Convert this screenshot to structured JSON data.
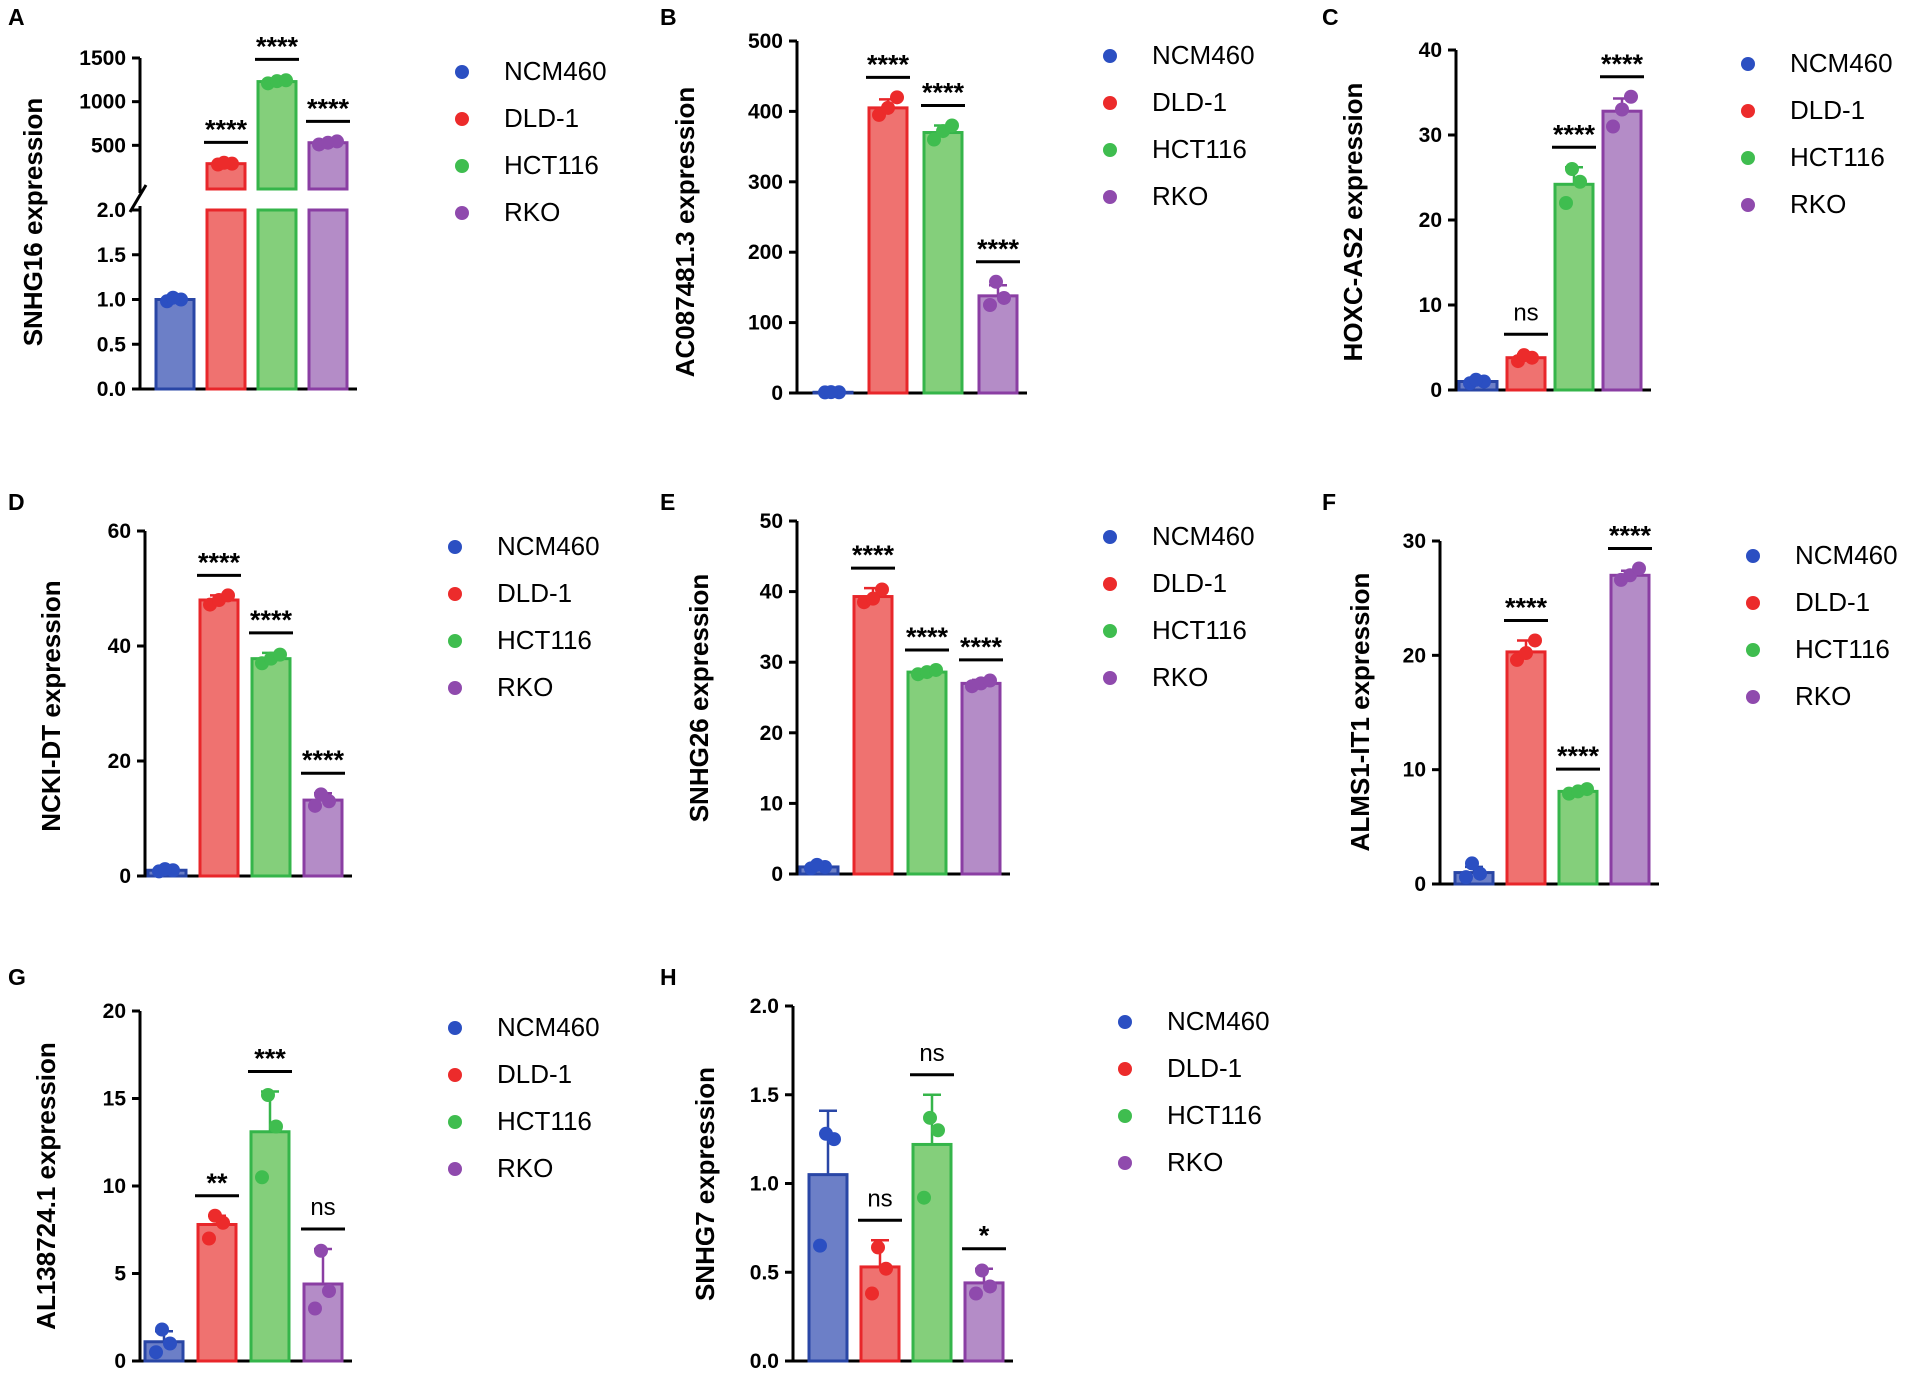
{
  "colors": {
    "NCM460": {
      "edge": "#2946a6",
      "fill": "#6c7fc7",
      "dot": "#2b4fc2"
    },
    "DLD-1": {
      "edge": "#e8262a",
      "fill": "#ef7270",
      "dot": "#ec2b2b"
    },
    "HCT116": {
      "edge": "#35b54a",
      "fill": "#84cf7b",
      "dot": "#3fbd4f"
    },
    "RKO": {
      "edge": "#8a3ea3",
      "fill": "#b48cc7",
      "dot": "#8f4aad"
    }
  },
  "legend_labels": [
    "NCM460",
    "DLD-1",
    "HCT116",
    "RKO"
  ],
  "chart_data": [
    {
      "panel": "A",
      "type": "bar",
      "ylabel": "SNHG16 expression",
      "categories": [
        "NCM460",
        "DLD-1",
        "HCT116",
        "RKO"
      ],
      "values": [
        1.0,
        290,
        1230,
        530
      ],
      "errors": [
        0.02,
        15,
        25,
        15
      ],
      "points": [
        [
          0.98,
          1.0,
          1.02
        ],
        [
          280,
          290,
          300
        ],
        [
          1210,
          1235,
          1245
        ],
        [
          510,
          530,
          545
        ]
      ],
      "significance": [
        null,
        "****",
        "****",
        "****"
      ],
      "axis_break": true,
      "lower_range": [
        0,
        2.0
      ],
      "upper_range": [
        0,
        1500
      ],
      "lower_ticks": [
        "0.0",
        "0.5",
        "1.0",
        "1.5",
        "2.0"
      ],
      "upper_ticks": [
        "500",
        "1000",
        "1500"
      ]
    },
    {
      "panel": "B",
      "type": "bar",
      "ylabel": "AC087481.3 expression",
      "categories": [
        "NCM460",
        "DLD-1",
        "HCT116",
        "RKO"
      ],
      "values": [
        1,
        405,
        370,
        138
      ],
      "errors": [
        0.5,
        12,
        10,
        15
      ],
      "points": [
        [
          0.8,
          1,
          1.2
        ],
        [
          395,
          405,
          420
        ],
        [
          360,
          372,
          380
        ],
        [
          125,
          135,
          158
        ]
      ],
      "significance": [
        null,
        "****",
        "****",
        "****"
      ],
      "ylim": [
        0,
        500
      ],
      "yticks": [
        "0",
        "100",
        "200",
        "300",
        "400",
        "500"
      ]
    },
    {
      "panel": "C",
      "type": "bar",
      "ylabel": "HOXC-AS2 expression",
      "categories": [
        "NCM460",
        "DLD-1",
        "HCT116",
        "RKO"
      ],
      "values": [
        1,
        3.8,
        24.2,
        32.8
      ],
      "errors": [
        0.2,
        0.4,
        2.0,
        1.5
      ],
      "points": [
        [
          0.8,
          1.0,
          1.2
        ],
        [
          3.4,
          3.8,
          4.1
        ],
        [
          22.0,
          24.5,
          26.0
        ],
        [
          31.0,
          33.0,
          34.5
        ]
      ],
      "significance": [
        null,
        "ns",
        "****",
        "****"
      ],
      "ylim": [
        0,
        40
      ],
      "yticks": [
        "0",
        "10",
        "20",
        "30",
        "40"
      ]
    },
    {
      "panel": "D",
      "type": "bar",
      "ylabel": "NCKI-DT expression",
      "categories": [
        "NCM460",
        "DLD-1",
        "HCT116",
        "RKO"
      ],
      "values": [
        1,
        48,
        37.8,
        13.2
      ],
      "errors": [
        0.2,
        0.8,
        1.0,
        1.2
      ],
      "points": [
        [
          0.8,
          1.0,
          1.2
        ],
        [
          47.2,
          48.0,
          48.8
        ],
        [
          37.0,
          37.8,
          38.5
        ],
        [
          12.2,
          13.0,
          14.2
        ]
      ],
      "significance": [
        null,
        "****",
        "****",
        "****"
      ],
      "ylim": [
        0,
        60
      ],
      "yticks": [
        "0",
        "20",
        "40",
        "60"
      ]
    },
    {
      "panel": "E",
      "type": "bar",
      "ylabel": "SNHG26 expression",
      "categories": [
        "NCM460",
        "DLD-1",
        "HCT116",
        "RKO"
      ],
      "values": [
        1,
        39.3,
        28.6,
        27
      ],
      "errors": [
        0.2,
        1.2,
        0.3,
        0.5
      ],
      "points": [
        [
          0.8,
          1.0,
          1.3
        ],
        [
          38.5,
          39.0,
          40.3
        ],
        [
          28.3,
          28.6,
          28.9
        ],
        [
          26.6,
          27.0,
          27.4
        ]
      ],
      "significance": [
        null,
        "****",
        "****",
        "****"
      ],
      "ylim": [
        0,
        50
      ],
      "yticks": [
        "0",
        "10",
        "20",
        "30",
        "40",
        "50"
      ]
    },
    {
      "panel": "F",
      "type": "bar",
      "ylabel": "ALMS1-IT1 expression",
      "categories": [
        "NCM460",
        "DLD-1",
        "HCT116",
        "RKO"
      ],
      "values": [
        1,
        20.3,
        8.1,
        27
      ],
      "errors": [
        0.5,
        1.0,
        0.2,
        0.4
      ],
      "points": [
        [
          0.6,
          0.9,
          1.8
        ],
        [
          19.6,
          20.2,
          21.3
        ],
        [
          7.9,
          8.1,
          8.3
        ],
        [
          26.6,
          27.0,
          27.6
        ]
      ],
      "significance": [
        null,
        "****",
        "****",
        "****"
      ],
      "ylim": [
        0,
        30
      ],
      "yticks": [
        "0",
        "10",
        "20",
        "30"
      ]
    },
    {
      "panel": "G",
      "type": "bar",
      "ylabel": "AL138724.1 expression",
      "categories": [
        "NCM460",
        "DLD-1",
        "HCT116",
        "RKO"
      ],
      "values": [
        1.1,
        7.8,
        13.1,
        4.4
      ],
      "errors": [
        0.6,
        0.5,
        2.3,
        2.0
      ],
      "points": [
        [
          0.5,
          1.0,
          1.8
        ],
        [
          7.0,
          7.9,
          8.3
        ],
        [
          10.5,
          13.4,
          15.2
        ],
        [
          3.0,
          4.0,
          6.3
        ]
      ],
      "significance": [
        null,
        "**",
        "***",
        "ns"
      ],
      "ylim": [
        0,
        20
      ],
      "yticks": [
        "0",
        "5",
        "10",
        "15",
        "20"
      ]
    },
    {
      "panel": "H",
      "type": "bar",
      "ylabel": "SNHG7 expression",
      "categories": [
        "NCM460",
        "DLD-1",
        "HCT116",
        "RKO"
      ],
      "values": [
        1.05,
        0.53,
        1.22,
        0.44
      ],
      "errors": [
        0.36,
        0.15,
        0.28,
        0.08
      ],
      "points": [
        [
          0.65,
          1.25,
          1.28
        ],
        [
          0.38,
          0.52,
          0.64
        ],
        [
          0.92,
          1.3,
          1.37
        ],
        [
          0.38,
          0.42,
          0.51
        ]
      ],
      "significance": [
        null,
        "ns",
        "ns",
        "*"
      ],
      "ylim": [
        0,
        2.0
      ],
      "yticks": [
        "0.0",
        "0.5",
        "1.0",
        "1.5",
        "2.0"
      ]
    }
  ]
}
